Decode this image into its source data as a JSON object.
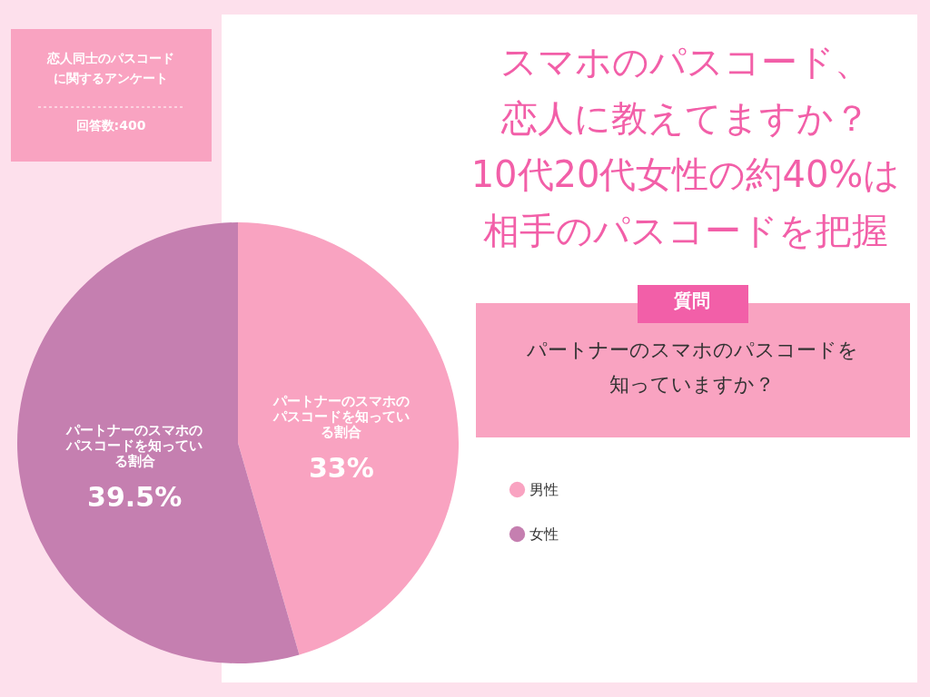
{
  "chart_data": {
    "type": "pie",
    "title": "スマホのパスコード、恋人に教えてますか？10代20代女性の約40%は相手のパスコードを把握",
    "categories": [
      "男性",
      "女性"
    ],
    "values": [
      33,
      39.5
    ],
    "colors": [
      "#f9a3c1",
      "#c57fb0"
    ],
    "value_labels": [
      "33%",
      "39.5%"
    ],
    "legend": "right",
    "annotations": [
      "恋人同士のパスコードに関するアンケート",
      "回答数:400",
      "質問",
      "パートナーのスマホのパスコードを知っていますか？",
      {
        "text": "パートナーのスマホのパスコードを知っている割合",
        "x": "男性"
      },
      {
        "text": "パートナーのスマホのパスコードを知っている割合",
        "x": "女性"
      }
    ]
  }
}
